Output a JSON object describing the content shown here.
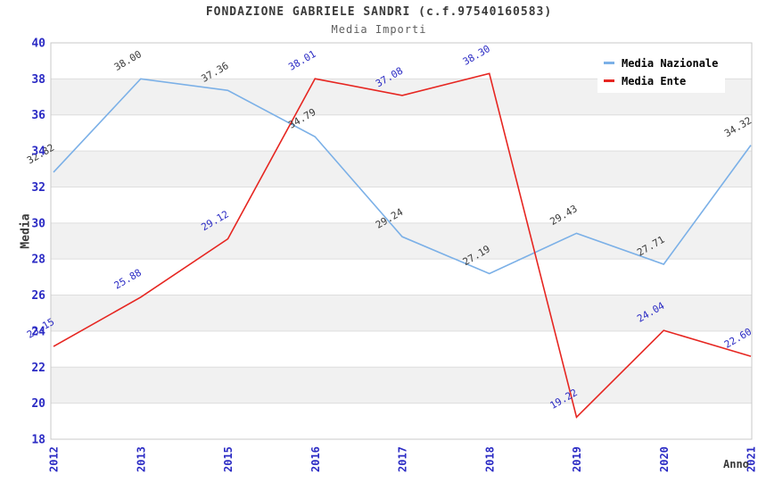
{
  "figure": {
    "title": "FONDAZIONE GABRIELE SANDRI (c.f.97540160583)",
    "subtitle": "Media Importi"
  },
  "legend": {
    "items": [
      {
        "label": "Media Nazionale",
        "color": "#7bb0e7"
      },
      {
        "label": "Media Ente",
        "color": "#e62621"
      }
    ]
  },
  "chart_data": {
    "type": "line",
    "title": "FONDAZIONE GABRIELE SANDRI (c.f.97540160583)",
    "subtitle": "Media Importi",
    "xlabel": "Anno",
    "ylabel": "Media",
    "categories": [
      "2012",
      "2013",
      "2015",
      "2016",
      "2017",
      "2018",
      "2019",
      "2020",
      "2021"
    ],
    "series": [
      {
        "name": "Media Nazionale",
        "color": "#7bb0e7",
        "label_color": "#3a3a3a",
        "values": [
          32.82,
          38.0,
          37.36,
          34.79,
          29.24,
          27.19,
          29.43,
          27.71,
          34.32
        ]
      },
      {
        "name": "Media Ente",
        "color": "#e62621",
        "label_color": "#2b2bc4",
        "values": [
          23.15,
          25.88,
          29.12,
          38.01,
          37.08,
          38.3,
          19.22,
          24.04,
          22.6
        ]
      }
    ],
    "ylim": [
      18,
      40
    ],
    "ytick_step": 2,
    "yticks": [
      18,
      20,
      22,
      24,
      26,
      28,
      30,
      32,
      34,
      36,
      38,
      40
    ],
    "tick_color": "#2b2bc4",
    "band_color": "#f1f1f1",
    "grid_color": "#dedede",
    "frame_color": "#c9c9c9",
    "grid": "horizontal-bands",
    "legend_position": "top-right",
    "value_labels": "2-decimals, rotated -30deg"
  }
}
